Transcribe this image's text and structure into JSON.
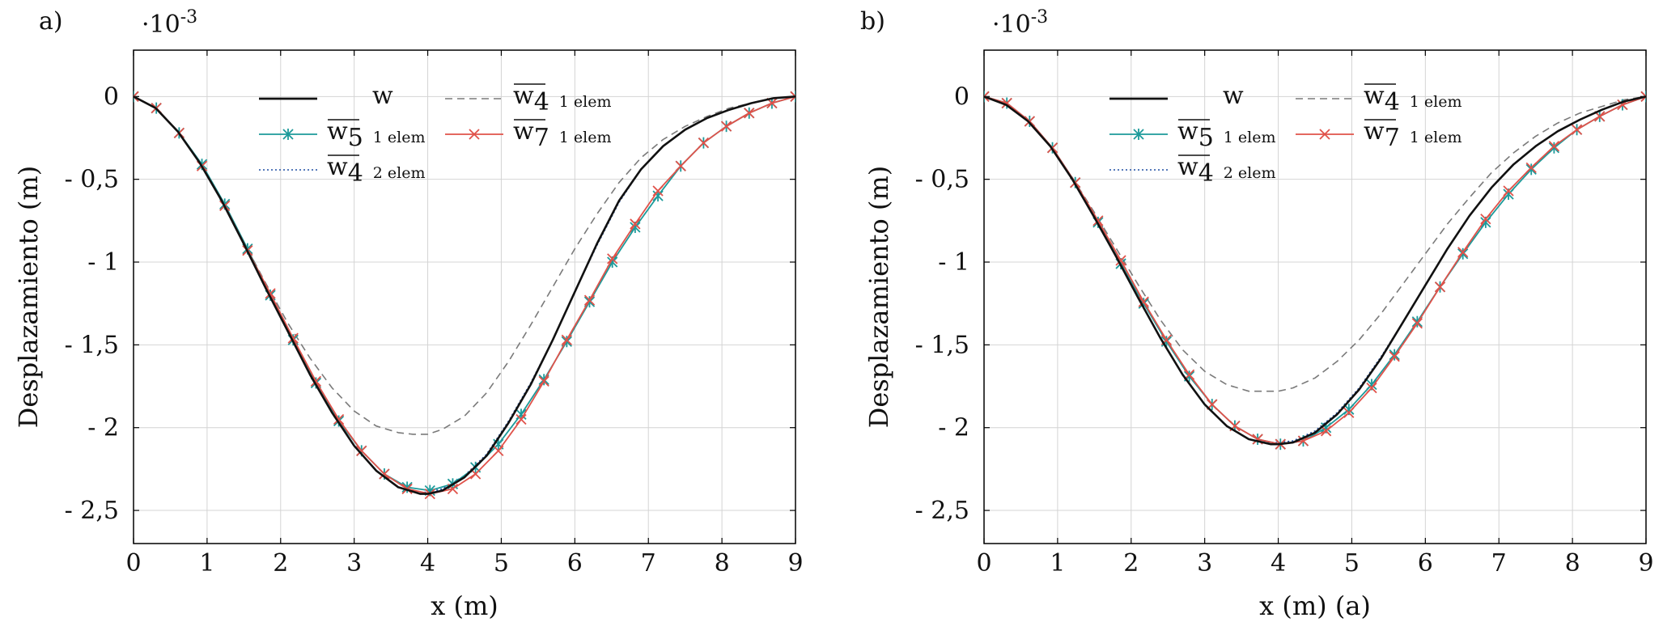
{
  "colors": {
    "w": "#111111",
    "w4_1": "#7a7a7a",
    "w5": "#1c9a9a",
    "w7": "#e0524a",
    "w4_2": "#1f4fa3",
    "frame": "#000000",
    "grid": "#d4d4d4"
  },
  "chart_data": [
    {
      "type": "line",
      "panel_label": "a)",
      "exponent_label": "·10-3",
      "xlabel": "x (m)",
      "ylabel": "Desplazamiento (m)",
      "xlim": [
        0,
        9
      ],
      "ylim": [
        -2.7,
        0.28
      ],
      "x_ticks": [
        0,
        1,
        2,
        3,
        4,
        5,
        6,
        7,
        8,
        9
      ],
      "y_ticks": [
        0,
        -0.5,
        -1,
        -1.5,
        -2,
        -2.5
      ],
      "x_tick_labels": [
        "0",
        "1",
        "2",
        "3",
        "4",
        "5",
        "6",
        "7",
        "8",
        "9"
      ],
      "y_tick_labels": [
        "0",
        "- 0,5",
        "- 1",
        "- 1,5",
        "- 2",
        "- 2,5"
      ],
      "legend_placement": "top-center",
      "grid": true,
      "series": [
        {
          "name": "w",
          "legend_base": "w",
          "legend_sub": "",
          "legend_note": "",
          "overline": false,
          "style": "solid",
          "marker": "none",
          "color_key": "w",
          "x": [
            0,
            0.3,
            0.6,
            0.9,
            1.2,
            1.5,
            1.8,
            2.1,
            2.4,
            2.7,
            3.0,
            3.3,
            3.6,
            3.9,
            4.0,
            4.2,
            4.5,
            4.8,
            5.1,
            5.4,
            5.7,
            6.0,
            6.3,
            6.6,
            6.9,
            7.2,
            7.5,
            7.8,
            8.1,
            8.4,
            8.7,
            9.0
          ],
          "y": [
            0,
            -0.07,
            -0.21,
            -0.4,
            -0.63,
            -0.89,
            -1.16,
            -1.42,
            -1.68,
            -1.91,
            -2.11,
            -2.26,
            -2.36,
            -2.4,
            -2.4,
            -2.38,
            -2.3,
            -2.17,
            -1.97,
            -1.74,
            -1.47,
            -1.18,
            -0.89,
            -0.63,
            -0.44,
            -0.3,
            -0.2,
            -0.13,
            -0.08,
            -0.04,
            -0.01,
            0
          ]
        },
        {
          "name": "w4 1 elem",
          "legend_base": "w",
          "legend_sub": "4",
          "legend_note": "1 elem",
          "overline": true,
          "style": "dashed",
          "marker": "none",
          "color_key": "w4_1",
          "x": [
            0,
            0.3,
            0.6,
            0.9,
            1.2,
            1.5,
            1.8,
            2.1,
            2.4,
            2.7,
            3.0,
            3.3,
            3.6,
            3.8,
            4.0,
            4.2,
            4.5,
            4.8,
            5.1,
            5.4,
            5.7,
            6.0,
            6.3,
            6.6,
            6.9,
            7.2,
            7.5,
            7.8,
            8.1,
            8.4,
            8.7,
            9.0
          ],
          "y": [
            0,
            -0.07,
            -0.21,
            -0.4,
            -0.63,
            -0.88,
            -1.13,
            -1.37,
            -1.58,
            -1.76,
            -1.9,
            -1.99,
            -2.03,
            -2.04,
            -2.04,
            -2.01,
            -1.93,
            -1.79,
            -1.6,
            -1.38,
            -1.15,
            -0.92,
            -0.71,
            -0.52,
            -0.37,
            -0.26,
            -0.18,
            -0.12,
            -0.07,
            -0.04,
            -0.01,
            0
          ]
        },
        {
          "name": "w5 1 elem",
          "legend_base": "w",
          "legend_sub": "5",
          "legend_note": "1 elem",
          "overline": true,
          "style": "solid",
          "marker": "asterisk",
          "color_key": "w5",
          "x": [
            0,
            0.31,
            0.62,
            0.93,
            1.24,
            1.55,
            1.86,
            2.17,
            2.48,
            2.79,
            3.1,
            3.41,
            3.72,
            4.03,
            4.34,
            4.65,
            4.96,
            5.27,
            5.58,
            5.89,
            6.2,
            6.51,
            6.82,
            7.13,
            7.44,
            7.75,
            8.06,
            8.37,
            8.68,
            9.0
          ],
          "y": [
            0,
            -0.07,
            -0.22,
            -0.41,
            -0.65,
            -0.92,
            -1.2,
            -1.47,
            -1.73,
            -1.96,
            -2.14,
            -2.28,
            -2.36,
            -2.38,
            -2.34,
            -2.24,
            -2.1,
            -1.92,
            -1.71,
            -1.48,
            -1.24,
            -1.0,
            -0.79,
            -0.6,
            -0.42,
            -0.28,
            -0.18,
            -0.1,
            -0.04,
            0
          ]
        },
        {
          "name": "w7 1 elem",
          "legend_base": "w",
          "legend_sub": "7",
          "legend_note": "1 elem",
          "overline": true,
          "style": "solid",
          "marker": "cross",
          "color_key": "w7",
          "x": [
            0,
            0.31,
            0.62,
            0.93,
            1.24,
            1.55,
            1.86,
            2.17,
            2.48,
            2.79,
            3.1,
            3.41,
            3.72,
            4.03,
            4.34,
            4.65,
            4.96,
            5.27,
            5.58,
            5.89,
            6.2,
            6.51,
            6.82,
            7.13,
            7.44,
            7.75,
            8.06,
            8.37,
            8.68,
            9.0
          ],
          "y": [
            0,
            -0.07,
            -0.22,
            -0.42,
            -0.66,
            -0.93,
            -1.19,
            -1.46,
            -1.72,
            -1.95,
            -2.14,
            -2.28,
            -2.37,
            -2.4,
            -2.37,
            -2.28,
            -2.14,
            -1.95,
            -1.72,
            -1.47,
            -1.23,
            -0.98,
            -0.77,
            -0.57,
            -0.42,
            -0.28,
            -0.18,
            -0.1,
            -0.04,
            0
          ]
        },
        {
          "name": "w4 2 elem",
          "legend_base": "w",
          "legend_sub": "4",
          "legend_note": "2 elem",
          "overline": true,
          "style": "dotted",
          "marker": "none",
          "color_key": "w4_2",
          "x": [
            0,
            0.3,
            0.6,
            0.9,
            1.2,
            1.5,
            1.8,
            2.1,
            2.4,
            2.7,
            3.0,
            3.3,
            3.6,
            3.9,
            4.0,
            4.2,
            4.5,
            4.8,
            5.1,
            5.4,
            5.7,
            6.0,
            6.3,
            6.6,
            6.9,
            7.2,
            7.5,
            7.8,
            8.1,
            8.4,
            8.7,
            9.0
          ],
          "y": [
            0,
            -0.07,
            -0.21,
            -0.4,
            -0.63,
            -0.89,
            -1.16,
            -1.42,
            -1.68,
            -1.91,
            -2.11,
            -2.26,
            -2.36,
            -2.39,
            -2.39,
            -2.37,
            -2.29,
            -2.16,
            -1.96,
            -1.73,
            -1.47,
            -1.18,
            -0.9,
            -0.64,
            -0.44,
            -0.3,
            -0.2,
            -0.13,
            -0.08,
            -0.04,
            -0.01,
            0
          ]
        }
      ]
    },
    {
      "type": "line",
      "panel_label": "b)",
      "exponent_label": "·10-3",
      "xlabel": "x (m) (a)",
      "ylabel": "Desplazamiento (m)",
      "xlim": [
        0,
        9
      ],
      "ylim": [
        -2.7,
        0.28
      ],
      "x_ticks": [
        0,
        1,
        2,
        3,
        4,
        5,
        6,
        7,
        8,
        9
      ],
      "y_ticks": [
        0,
        -0.5,
        -1,
        -1.5,
        -2,
        -2.5
      ],
      "x_tick_labels": [
        "0",
        "1",
        "2",
        "3",
        "4",
        "5",
        "6",
        "7",
        "8",
        "9"
      ],
      "y_tick_labels": [
        "0",
        "- 0,5",
        "- 1",
        "- 1,5",
        "- 2",
        "- 2,5"
      ],
      "legend_placement": "top-center",
      "grid": true,
      "series": [
        {
          "name": "w",
          "legend_base": "w",
          "legend_sub": "",
          "legend_note": "",
          "overline": false,
          "style": "solid",
          "marker": "none",
          "color_key": "w",
          "x": [
            0,
            0.3,
            0.6,
            0.9,
            1.2,
            1.5,
            1.8,
            2.1,
            2.4,
            2.7,
            3.0,
            3.3,
            3.6,
            3.9,
            4.0,
            4.2,
            4.5,
            4.8,
            5.1,
            5.4,
            5.7,
            6.0,
            6.3,
            6.6,
            6.9,
            7.2,
            7.5,
            7.8,
            8.1,
            8.4,
            8.7,
            9.0
          ],
          "y": [
            0,
            -0.05,
            -0.15,
            -0.3,
            -0.5,
            -0.73,
            -0.97,
            -1.22,
            -1.46,
            -1.68,
            -1.86,
            -1.99,
            -2.07,
            -2.1,
            -2.1,
            -2.09,
            -2.03,
            -1.92,
            -1.77,
            -1.58,
            -1.36,
            -1.14,
            -0.92,
            -0.72,
            -0.55,
            -0.41,
            -0.3,
            -0.21,
            -0.14,
            -0.08,
            -0.03,
            0
          ]
        },
        {
          "name": "w4 1 elem",
          "legend_base": "w",
          "legend_sub": "4",
          "legend_note": "1 elem",
          "overline": true,
          "style": "dashed",
          "marker": "none",
          "color_key": "w4_1",
          "x": [
            0,
            0.3,
            0.6,
            0.9,
            1.2,
            1.5,
            1.8,
            2.1,
            2.4,
            2.7,
            3.0,
            3.3,
            3.6,
            3.9,
            4.0,
            4.2,
            4.5,
            4.8,
            5.1,
            5.4,
            5.7,
            6.0,
            6.3,
            6.6,
            6.9,
            7.2,
            7.5,
            7.8,
            8.1,
            8.4,
            8.7,
            9.0
          ],
          "y": [
            0,
            -0.05,
            -0.15,
            -0.3,
            -0.49,
            -0.7,
            -0.92,
            -1.14,
            -1.35,
            -1.53,
            -1.66,
            -1.74,
            -1.78,
            -1.78,
            -1.78,
            -1.76,
            -1.7,
            -1.6,
            -1.47,
            -1.31,
            -1.13,
            -0.95,
            -0.77,
            -0.61,
            -0.46,
            -0.34,
            -0.24,
            -0.16,
            -0.1,
            -0.06,
            -0.02,
            0
          ]
        },
        {
          "name": "w5 1 elem",
          "legend_base": "w",
          "legend_sub": "5",
          "legend_note": "1 elem",
          "overline": true,
          "style": "solid",
          "marker": "asterisk",
          "color_key": "w5",
          "x": [
            0,
            0.31,
            0.62,
            0.93,
            1.24,
            1.55,
            1.86,
            2.17,
            2.48,
            2.79,
            3.1,
            3.41,
            3.72,
            4.03,
            4.34,
            4.65,
            4.96,
            5.27,
            5.58,
            5.89,
            6.2,
            6.51,
            6.82,
            7.13,
            7.44,
            7.75,
            8.06,
            8.37,
            8.68,
            9.0
          ],
          "y": [
            0,
            -0.04,
            -0.15,
            -0.31,
            -0.52,
            -0.76,
            -1.01,
            -1.25,
            -1.48,
            -1.69,
            -1.86,
            -1.99,
            -2.07,
            -2.1,
            -2.08,
            -2.0,
            -1.89,
            -1.74,
            -1.56,
            -1.36,
            -1.15,
            -0.95,
            -0.76,
            -0.59,
            -0.44,
            -0.31,
            -0.2,
            -0.12,
            -0.05,
            0
          ]
        },
        {
          "name": "w7 1 elem",
          "legend_base": "w",
          "legend_sub": "7",
          "legend_note": "1 elem",
          "overline": true,
          "style": "solid",
          "marker": "cross",
          "color_key": "w7",
          "x": [
            0,
            0.31,
            0.62,
            0.93,
            1.24,
            1.55,
            1.86,
            2.17,
            2.48,
            2.79,
            3.1,
            3.41,
            3.72,
            4.03,
            4.34,
            4.65,
            4.96,
            5.27,
            5.58,
            5.89,
            6.2,
            6.51,
            6.82,
            7.13,
            7.44,
            7.75,
            8.06,
            8.37,
            8.68,
            9.0
          ],
          "y": [
            0,
            -0.04,
            -0.15,
            -0.31,
            -0.52,
            -0.75,
            -0.99,
            -1.24,
            -1.47,
            -1.68,
            -1.86,
            -1.99,
            -2.07,
            -2.1,
            -2.08,
            -2.02,
            -1.91,
            -1.76,
            -1.57,
            -1.37,
            -1.15,
            -0.94,
            -0.74,
            -0.57,
            -0.43,
            -0.3,
            -0.2,
            -0.12,
            -0.05,
            0
          ]
        },
        {
          "name": "w4 2 elem",
          "legend_base": "w",
          "legend_sub": "4",
          "legend_note": "2 elem",
          "overline": true,
          "style": "dotted",
          "marker": "none",
          "color_key": "w4_2",
          "x": [
            0,
            0.3,
            0.6,
            0.9,
            1.2,
            1.5,
            1.8,
            2.1,
            2.4,
            2.7,
            3.0,
            3.3,
            3.6,
            3.9,
            4.0,
            4.2,
            4.5,
            4.8,
            5.1,
            5.4,
            5.7,
            6.0,
            6.3,
            6.6,
            6.9,
            7.2,
            7.5,
            7.8,
            8.1,
            8.4,
            8.7,
            9.0
          ],
          "y": [
            0,
            -0.05,
            -0.15,
            -0.3,
            -0.5,
            -0.73,
            -0.97,
            -1.22,
            -1.46,
            -1.68,
            -1.86,
            -1.99,
            -2.07,
            -2.09,
            -2.09,
            -2.08,
            -2.02,
            -1.91,
            -1.76,
            -1.57,
            -1.36,
            -1.14,
            -0.92,
            -0.72,
            -0.55,
            -0.41,
            -0.3,
            -0.21,
            -0.14,
            -0.08,
            -0.03,
            0
          ]
        }
      ]
    }
  ]
}
